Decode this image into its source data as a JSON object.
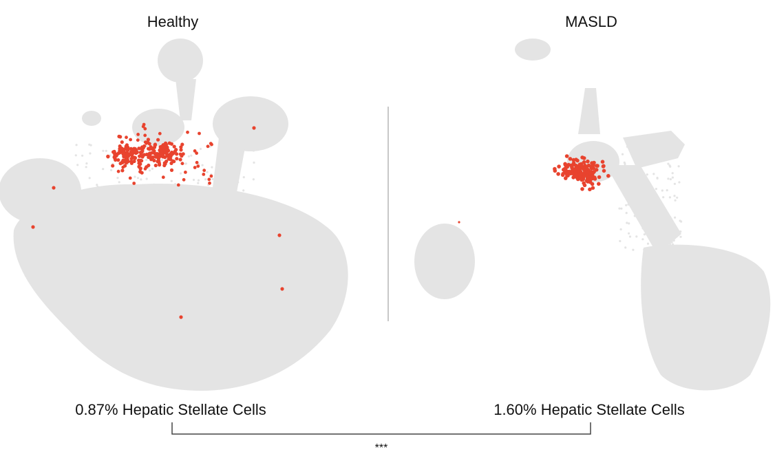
{
  "chart_data": {
    "type": "scatter",
    "description_type": "UMAP embedding comparison",
    "panels": [
      {
        "title": "Healthy",
        "caption": "0.87% Hepatic Stellate Cells",
        "highlight_percent": 0.87,
        "highlight_label": "Hepatic Stellate Cells"
      },
      {
        "title": "MASLD",
        "caption": "1.60% Hepatic Stellate Cells",
        "highlight_percent": 1.6,
        "highlight_label": "Hepatic Stellate Cells"
      }
    ],
    "comparison": {
      "significance": "***"
    },
    "colors": {
      "background_cells": "#e4e4e4",
      "highlighted_cells": "#e8432e"
    }
  }
}
